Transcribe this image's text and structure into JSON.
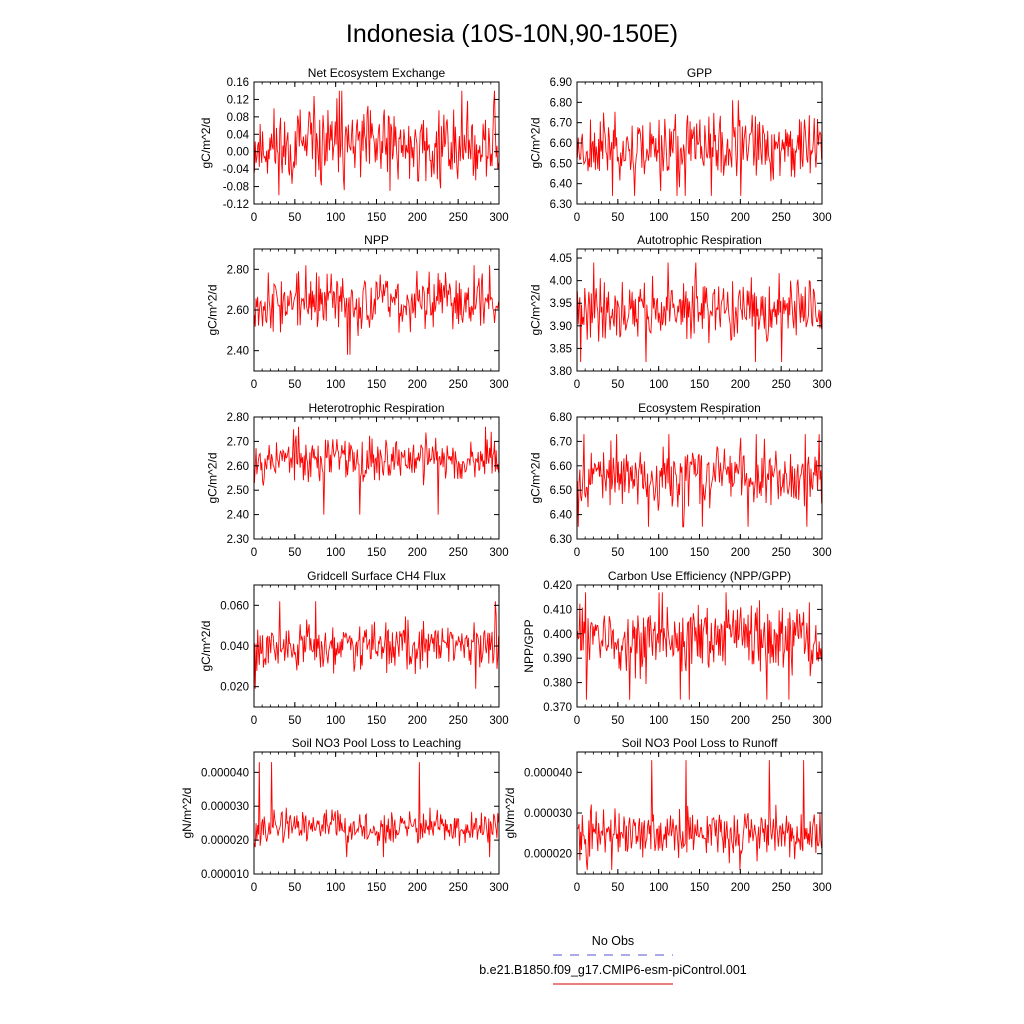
{
  "figure": {
    "title": "Indonesia (10S-10N,90-150E)",
    "legend": {
      "obs_label": "No Obs",
      "obs_color": "#7777dd",
      "model_label": "b.e21.B1850.f09_g17.CMIP6-esm-piControl.001",
      "model_color": "#dd3333"
    },
    "series_color": "#ff0000"
  },
  "chart_data": [
    {
      "type": "line",
      "title": "Net Ecosystem Exchange",
      "ylabel": "gC/m^2/d",
      "xlim": [
        0,
        300
      ],
      "ylim": [
        -0.12,
        0.16
      ],
      "xticks": [
        0,
        50,
        100,
        150,
        200,
        250,
        300
      ],
      "xtick_labels": [
        "0",
        "50",
        "100",
        "150",
        "200",
        "250",
        "300"
      ],
      "yticks": [
        -0.12,
        -0.08,
        -0.04,
        0.0,
        0.04,
        0.08,
        0.12,
        0.16
      ],
      "ytick_labels": [
        "-0.12",
        "-0.08",
        "-0.04",
        "0.00",
        "0.04",
        "0.08",
        "0.12",
        "0.16"
      ],
      "series": [
        {
          "name": "b.e21.B1850.f09_g17.CMIP6-esm-piControl.001",
          "y_center": 0.01,
          "y_amp": 0.085,
          "y_min": -0.1,
          "y_max": 0.14,
          "n_points": 300,
          "seed": 11
        }
      ]
    },
    {
      "type": "line",
      "title": "GPP",
      "ylabel": "gC/m^2/d",
      "xlim": [
        0,
        300
      ],
      "ylim": [
        6.3,
        6.9
      ],
      "xticks": [
        0,
        50,
        100,
        150,
        200,
        250,
        300
      ],
      "xtick_labels": [
        "0",
        "50",
        "100",
        "150",
        "200",
        "250",
        "300"
      ],
      "yticks": [
        6.3,
        6.4,
        6.5,
        6.6,
        6.7,
        6.8,
        6.9
      ],
      "ytick_labels": [
        "6.30",
        "6.40",
        "6.50",
        "6.60",
        "6.70",
        "6.80",
        "6.90"
      ],
      "series": [
        {
          "name": "b.e21.B1850.f09_g17.CMIP6-esm-piControl.001",
          "y_center": 6.58,
          "y_amp": 0.15,
          "y_min": 6.34,
          "y_max": 6.81,
          "n_points": 300,
          "seed": 23
        }
      ]
    },
    {
      "type": "line",
      "title": "NPP",
      "ylabel": "gC/m^2/d",
      "xlim": [
        0,
        300
      ],
      "ylim": [
        2.3,
        2.9
      ],
      "xticks": [
        0,
        50,
        100,
        150,
        200,
        250,
        300
      ],
      "xtick_labels": [
        "0",
        "50",
        "100",
        "150",
        "200",
        "250",
        "300"
      ],
      "yticks": [
        2.4,
        2.6,
        2.8
      ],
      "ytick_labels": [
        "2.40",
        "2.60",
        "2.80"
      ],
      "series": [
        {
          "name": "b.e21.B1850.f09_g17.CMIP6-esm-piControl.001",
          "y_center": 2.64,
          "y_amp": 0.13,
          "y_min": 2.38,
          "y_max": 2.82,
          "n_points": 300,
          "seed": 37
        }
      ]
    },
    {
      "type": "line",
      "title": "Autotrophic Respiration",
      "ylabel": "gC/m^2/d",
      "xlim": [
        0,
        300
      ],
      "ylim": [
        3.8,
        4.07
      ],
      "xticks": [
        0,
        50,
        100,
        150,
        200,
        250,
        300
      ],
      "xtick_labels": [
        "0",
        "50",
        "100",
        "150",
        "200",
        "250",
        "300"
      ],
      "yticks": [
        3.8,
        3.85,
        3.9,
        3.95,
        4.0,
        4.05
      ],
      "ytick_labels": [
        "3.80",
        "3.85",
        "3.90",
        "3.95",
        "4.00",
        "4.05"
      ],
      "series": [
        {
          "name": "b.e21.B1850.f09_g17.CMIP6-esm-piControl.001",
          "y_center": 3.935,
          "y_amp": 0.06,
          "y_min": 3.82,
          "y_max": 4.04,
          "n_points": 300,
          "seed": 41
        }
      ]
    },
    {
      "type": "line",
      "title": "Heterotrophic Respiration",
      "ylabel": "gC/m^2/d",
      "xlim": [
        0,
        300
      ],
      "ylim": [
        2.3,
        2.8
      ],
      "xticks": [
        0,
        50,
        100,
        150,
        200,
        250,
        300
      ],
      "xtick_labels": [
        "0",
        "50",
        "100",
        "150",
        "200",
        "250",
        "300"
      ],
      "yticks": [
        2.3,
        2.4,
        2.5,
        2.6,
        2.7,
        2.8
      ],
      "ytick_labels": [
        "2.30",
        "2.40",
        "2.50",
        "2.60",
        "2.70",
        "2.80"
      ],
      "series": [
        {
          "name": "b.e21.B1850.f09_g17.CMIP6-esm-piControl.001",
          "y_center": 2.63,
          "y_amp": 0.09,
          "y_min": 2.4,
          "y_max": 2.76,
          "n_points": 300,
          "seed": 53
        }
      ]
    },
    {
      "type": "line",
      "title": "Ecosystem Respiration",
      "ylabel": "gC/m^2/d",
      "xlim": [
        0,
        300
      ],
      "ylim": [
        6.3,
        6.8
      ],
      "xticks": [
        0,
        50,
        100,
        150,
        200,
        250,
        300
      ],
      "xtick_labels": [
        "0",
        "50",
        "100",
        "150",
        "200",
        "250",
        "300"
      ],
      "yticks": [
        6.3,
        6.4,
        6.5,
        6.6,
        6.7,
        6.8
      ],
      "ytick_labels": [
        "6.30",
        "6.40",
        "6.50",
        "6.60",
        "6.70",
        "6.80"
      ],
      "series": [
        {
          "name": "b.e21.B1850.f09_g17.CMIP6-esm-piControl.001",
          "y_center": 6.56,
          "y_amp": 0.11,
          "y_min": 6.35,
          "y_max": 6.73,
          "n_points": 300,
          "seed": 67
        }
      ]
    },
    {
      "type": "line",
      "title": "Gridcell Surface CH4 Flux",
      "ylabel": "gC/m^2/d",
      "xlim": [
        0,
        300
      ],
      "ylim": [
        0.01,
        0.07
      ],
      "xticks": [
        0,
        50,
        100,
        150,
        200,
        250,
        300
      ],
      "xtick_labels": [
        "0",
        "50",
        "100",
        "150",
        "200",
        "250",
        "300"
      ],
      "yticks": [
        0.02,
        0.04,
        0.06
      ],
      "ytick_labels": [
        "0.020",
        "0.040",
        "0.060"
      ],
      "series": [
        {
          "name": "b.e21.B1850.f09_g17.CMIP6-esm-piControl.001",
          "y_center": 0.04,
          "y_amp": 0.011,
          "y_min": 0.019,
          "y_max": 0.062,
          "n_points": 300,
          "seed": 79
        }
      ]
    },
    {
      "type": "line",
      "title": "Carbon Use Efficiency (NPP/GPP)",
      "ylabel": "NPP/GPP",
      "xlim": [
        0,
        300
      ],
      "ylim": [
        0.37,
        0.42
      ],
      "xticks": [
        0,
        50,
        100,
        150,
        200,
        250,
        300
      ],
      "xtick_labels": [
        "0",
        "50",
        "100",
        "150",
        "200",
        "250",
        "300"
      ],
      "yticks": [
        0.37,
        0.38,
        0.39,
        0.4,
        0.41,
        0.42
      ],
      "ytick_labels": [
        "0.370",
        "0.380",
        "0.390",
        "0.400",
        "0.410",
        "0.420"
      ],
      "series": [
        {
          "name": "b.e21.B1850.f09_g17.CMIP6-esm-piControl.001",
          "y_center": 0.398,
          "y_amp": 0.013,
          "y_min": 0.373,
          "y_max": 0.417,
          "n_points": 300,
          "seed": 83
        }
      ]
    },
    {
      "type": "line",
      "title": "Soil NO3 Pool Loss to Leaching",
      "ylabel": "gN/m^2/d",
      "xlim": [
        0,
        300
      ],
      "ylim": [
        1e-05,
        4.6e-05
      ],
      "xticks": [
        0,
        50,
        100,
        150,
        200,
        250,
        300
      ],
      "xtick_labels": [
        "0",
        "50",
        "100",
        "150",
        "200",
        "250",
        "300"
      ],
      "yticks": [
        1e-05,
        2e-05,
        3e-05,
        4e-05
      ],
      "ytick_labels": [
        "0.000010",
        "0.000020",
        "0.000030",
        "0.000040"
      ],
      "series": [
        {
          "name": "b.e21.B1850.f09_g17.CMIP6-esm-piControl.001",
          "y_center": 2.35e-05,
          "y_amp": 4.5e-06,
          "y_min": 1.5e-05,
          "y_max": 4.3e-05,
          "n_points": 300,
          "seed": 97
        }
      ]
    },
    {
      "type": "line",
      "title": "Soil NO3 Pool Loss to Runoff",
      "ylabel": "gN/m^2/d",
      "xlim": [
        0,
        300
      ],
      "ylim": [
        1.5e-05,
        4.5e-05
      ],
      "xticks": [
        0,
        50,
        100,
        150,
        200,
        250,
        300
      ],
      "xtick_labels": [
        "0",
        "50",
        "100",
        "150",
        "200",
        "250",
        "300"
      ],
      "yticks": [
        2e-05,
        3e-05,
        4e-05
      ],
      "ytick_labels": [
        "0.000020",
        "0.000030",
        "0.000040"
      ],
      "series": [
        {
          "name": "b.e21.B1850.f09_g17.CMIP6-esm-piControl.001",
          "y_center": 2.5e-05,
          "y_amp": 5.5e-06,
          "y_min": 1.6e-05,
          "y_max": 4.3e-05,
          "n_points": 300,
          "seed": 101
        }
      ]
    }
  ]
}
